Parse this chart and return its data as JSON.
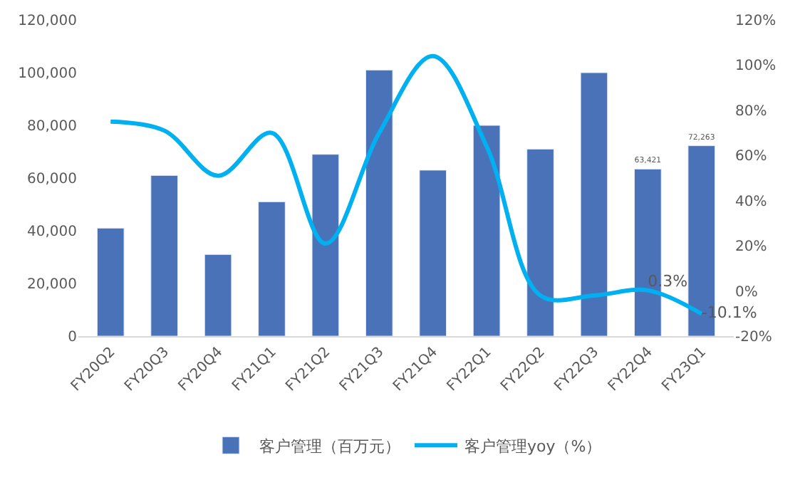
{
  "chart_data": {
    "type": "bar",
    "categories": [
      "FY20Q2",
      "FY20Q3",
      "FY20Q4",
      "FY21Q1",
      "FY21Q2",
      "FY21Q3",
      "FY21Q4",
      "FY22Q1",
      "FY22Q2",
      "FY22Q3",
      "FY22Q4",
      "FY23Q1"
    ],
    "series": [
      {
        "name": "客户管理（百万元）",
        "color": "#4a72b8",
        "values": [
          41000,
          61000,
          31000,
          51000,
          69000,
          101000,
          63000,
          80000,
          71000,
          100000,
          63421,
          72263
        ],
        "value_labels": [
          null,
          null,
          null,
          null,
          null,
          null,
          null,
          null,
          null,
          null,
          "63,421",
          "72,263"
        ]
      },
      {
        "name": "客户管理yoy（%）",
        "type": "line",
        "axis": "y2",
        "color": "#00b0f0",
        "values": [
          75,
          71,
          51,
          70,
          21,
          70,
          104,
          64,
          -2,
          -2,
          0.3,
          -10.1
        ],
        "value_labels": [
          null,
          null,
          null,
          null,
          null,
          null,
          null,
          null,
          null,
          null,
          "0.3%",
          "-10.1%"
        ]
      }
    ],
    "ylim": [
      0,
      120000
    ],
    "yticks": [
      {
        "value": 0,
        "label": "0"
      },
      {
        "value": 20000,
        "label": "20,000"
      },
      {
        "value": 40000,
        "label": "40,000"
      },
      {
        "value": 60000,
        "label": "60,000"
      },
      {
        "value": 80000,
        "label": "80,000"
      },
      {
        "value": 100000,
        "label": "100,000"
      },
      {
        "value": 120000,
        "label": "120,000"
      }
    ],
    "y2lim": [
      -20,
      120
    ],
    "y2ticks": [
      {
        "value": -20,
        "label": "-20%"
      },
      {
        "value": 0,
        "label": "0%"
      },
      {
        "value": 20,
        "label": "20%"
      },
      {
        "value": 40,
        "label": "40%"
      },
      {
        "value": 60,
        "label": "60%"
      },
      {
        "value": 80,
        "label": "80%"
      },
      {
        "value": 100,
        "label": "100%"
      },
      {
        "value": 120,
        "label": "120%"
      }
    ],
    "legend": "bottom",
    "marker": "none"
  }
}
